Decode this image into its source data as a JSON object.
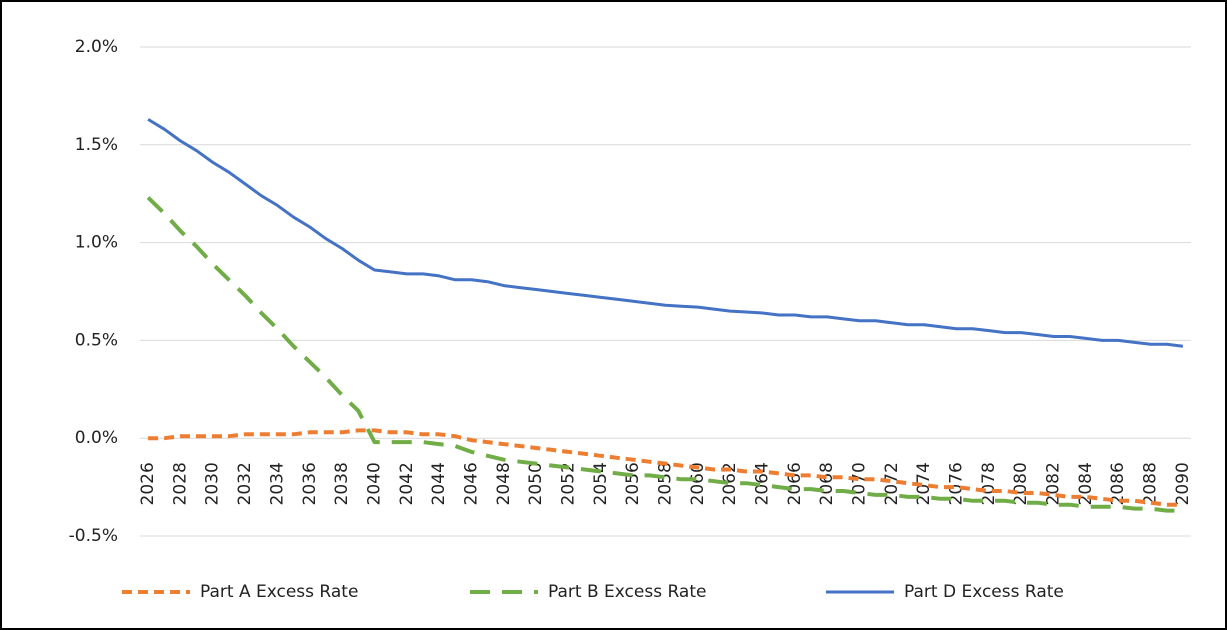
{
  "chart_data": {
    "type": "line",
    "categories": [
      "2026",
      null,
      "2028",
      null,
      "2030",
      null,
      "2032",
      null,
      "2034",
      null,
      "2036",
      null,
      "2038",
      null,
      "2040",
      null,
      "2042",
      null,
      "2044",
      null,
      "2046",
      null,
      "2048",
      null,
      "2050",
      null,
      "2052",
      null,
      "2054",
      null,
      "2056",
      null,
      "2058",
      null,
      "2060",
      null,
      "2062",
      null,
      "2064",
      null,
      "2066",
      null,
      "2068",
      null,
      "2070",
      null,
      "2072",
      null,
      "2074",
      null,
      "2076",
      null,
      "2078",
      null,
      "2080",
      null,
      "2082",
      null,
      "2084",
      null,
      "2086",
      null,
      "2088",
      null,
      "2090"
    ],
    "series": [
      {
        "name": "Part A Excess Rate",
        "color": "#ed7d31",
        "dash": "10,6",
        "values": [
          0.0,
          0.0,
          0.01,
          0.01,
          0.01,
          0.01,
          0.02,
          0.02,
          0.02,
          0.02,
          0.03,
          0.03,
          0.03,
          0.04,
          0.04,
          0.03,
          0.03,
          0.02,
          0.02,
          0.01,
          -0.01,
          -0.02,
          -0.03,
          -0.04,
          -0.05,
          -0.06,
          -0.07,
          -0.08,
          -0.09,
          -0.1,
          -0.11,
          -0.12,
          -0.13,
          -0.14,
          -0.15,
          -0.16,
          -0.16,
          -0.17,
          -0.17,
          -0.18,
          -0.19,
          -0.19,
          -0.2,
          -0.2,
          -0.21,
          -0.21,
          -0.22,
          -0.23,
          -0.24,
          -0.25,
          -0.25,
          -0.26,
          -0.27,
          -0.27,
          -0.28,
          -0.28,
          -0.29,
          -0.3,
          -0.3,
          -0.31,
          -0.32,
          -0.32,
          -0.33,
          -0.34,
          -0.34
        ]
      },
      {
        "name": "Part B Excess Rate",
        "color": "#70ad47",
        "dash": "20,12",
        "values": [
          1.23,
          1.15,
          1.06,
          0.98,
          0.89,
          0.81,
          0.73,
          0.64,
          0.56,
          0.47,
          0.39,
          0.31,
          0.22,
          0.14,
          -0.02,
          -0.02,
          -0.02,
          -0.02,
          -0.03,
          -0.04,
          -0.07,
          -0.09,
          -0.11,
          -0.12,
          -0.13,
          -0.14,
          -0.15,
          -0.16,
          -0.17,
          -0.18,
          -0.19,
          -0.19,
          -0.2,
          -0.21,
          -0.21,
          -0.22,
          -0.23,
          -0.23,
          -0.24,
          -0.25,
          -0.26,
          -0.26,
          -0.27,
          -0.27,
          -0.28,
          -0.29,
          -0.29,
          -0.3,
          -0.3,
          -0.31,
          -0.31,
          -0.32,
          -0.32,
          -0.32,
          -0.33,
          -0.33,
          -0.34,
          -0.34,
          -0.35,
          -0.35,
          -0.35,
          -0.36,
          -0.36,
          -0.37,
          -0.37
        ]
      },
      {
        "name": "Part D Excess Rate",
        "color": "#4472c4",
        "dash": null,
        "values": [
          1.63,
          1.58,
          1.52,
          1.47,
          1.41,
          1.36,
          1.3,
          1.24,
          1.19,
          1.13,
          1.08,
          1.02,
          0.97,
          0.91,
          0.86,
          0.85,
          0.84,
          0.84,
          0.83,
          0.81,
          0.81,
          0.8,
          0.78,
          0.77,
          0.76,
          0.75,
          0.74,
          0.73,
          0.72,
          0.71,
          0.7,
          0.69,
          0.68,
          0.675,
          0.67,
          0.66,
          0.65,
          0.645,
          0.64,
          0.63,
          0.63,
          0.62,
          0.62,
          0.61,
          0.6,
          0.6,
          0.59,
          0.58,
          0.58,
          0.57,
          0.56,
          0.56,
          0.55,
          0.54,
          0.54,
          0.53,
          0.52,
          0.52,
          0.51,
          0.5,
          0.5,
          0.49,
          0.48,
          0.48,
          0.47
        ]
      }
    ],
    "ylim": [
      -0.5,
      2.0
    ],
    "yticks": [
      {
        "value": -0.5,
        "label": "-0.5%"
      },
      {
        "value": 0,
        "label": "0.0%"
      },
      {
        "value": 0.5,
        "label": "0.5%"
      },
      {
        "value": 1,
        "label": "1.0%"
      },
      {
        "value": 1.5,
        "label": "1.5%"
      },
      {
        "value": 2,
        "label": "2.0%"
      }
    ],
    "grid": true,
    "legend": "bottom"
  }
}
